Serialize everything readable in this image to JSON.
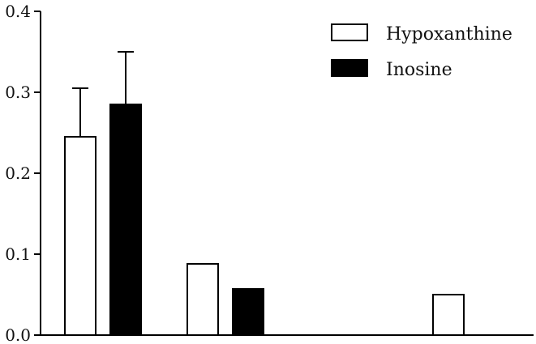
{
  "chart_data": {
    "type": "bar",
    "title": "",
    "xlabel": "",
    "ylabel": "",
    "ylim": [
      0,
      0.4
    ],
    "yticks": [
      "0.0",
      "0.1",
      "0.2",
      "0.3",
      "0.4"
    ],
    "categories": [
      "",
      "",
      ""
    ],
    "series": [
      {
        "name": "Hypoxanthine",
        "fill": "#ffffff",
        "values": [
          0.245,
          0.088,
          0.05
        ],
        "errors": [
          0.06,
          null,
          null
        ]
      },
      {
        "name": "Inosine",
        "fill": "#000000",
        "values": [
          0.285,
          0.057,
          null
        ],
        "errors": [
          0.065,
          null,
          null
        ]
      }
    ],
    "legend_position": "top-right",
    "grid": false
  }
}
